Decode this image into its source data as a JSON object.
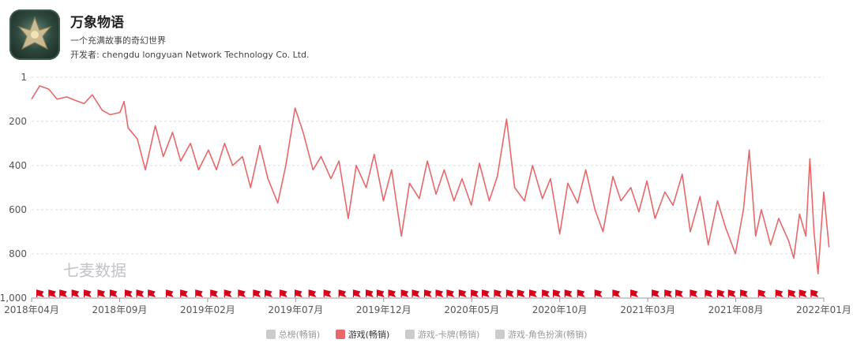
{
  "app": {
    "title": "万象物语",
    "description": "一个充满故事的奇幻世界",
    "developer": "开发者: chengdu longyuan Network Technology Co. Ltd.",
    "icon": "game-emblem-icon"
  },
  "watermark": "七麦数据",
  "colors": {
    "line": "#e8676b",
    "flag": "#d9001b",
    "inactive": "#cccccc",
    "grid": "#dddddd"
  },
  "legend": [
    {
      "label": "总榜(畅销)",
      "active": false
    },
    {
      "label": "游戏(畅销)",
      "active": true
    },
    {
      "label": "游戏-卡牌(畅销)",
      "active": false
    },
    {
      "label": "游戏-角色扮演(畅销)",
      "active": false
    }
  ],
  "chart_data": {
    "type": "line",
    "title": "",
    "xlabel": "",
    "ylabel": "",
    "y_reversed": true,
    "ylim": [
      1,
      1000
    ],
    "y_ticks": [
      "1",
      "200",
      "400",
      "600",
      "800",
      "1,000"
    ],
    "y_tick_values": [
      1,
      200,
      400,
      600,
      800,
      1000
    ],
    "x_ticks": [
      "2018年04月",
      "2018年09月",
      "2019年02月",
      "2019年07月",
      "2019年12月",
      "2020年05月",
      "2020年10月",
      "2021年03月",
      "2021年08月",
      "2022年01月"
    ],
    "x_range": [
      "2018-04-01",
      "2022-01-01"
    ],
    "grid": true,
    "legend_position": "bottom-center",
    "series": [
      {
        "name": "游戏(畅销)",
        "points": [
          [
            "2018-04-01",
            100
          ],
          [
            "2018-04-15",
            40
          ],
          [
            "2018-05-01",
            55
          ],
          [
            "2018-05-15",
            100
          ],
          [
            "2018-06-01",
            90
          ],
          [
            "2018-06-15",
            105
          ],
          [
            "2018-07-01",
            120
          ],
          [
            "2018-07-15",
            80
          ],
          [
            "2018-08-01",
            150
          ],
          [
            "2018-08-15",
            170
          ],
          [
            "2018-09-01",
            160
          ],
          [
            "2018-09-08",
            110
          ],
          [
            "2018-09-15",
            230
          ],
          [
            "2018-10-01",
            280
          ],
          [
            "2018-10-15",
            420
          ],
          [
            "2018-11-01",
            220
          ],
          [
            "2018-11-15",
            360
          ],
          [
            "2018-12-01",
            250
          ],
          [
            "2018-12-15",
            380
          ],
          [
            "2019-01-01",
            300
          ],
          [
            "2019-01-15",
            420
          ],
          [
            "2019-02-01",
            330
          ],
          [
            "2019-02-15",
            420
          ],
          [
            "2019-03-01",
            300
          ],
          [
            "2019-03-15",
            400
          ],
          [
            "2019-04-01",
            360
          ],
          [
            "2019-04-15",
            500
          ],
          [
            "2019-05-01",
            310
          ],
          [
            "2019-05-15",
            460
          ],
          [
            "2019-06-01",
            570
          ],
          [
            "2019-06-15",
            400
          ],
          [
            "2019-07-01",
            140
          ],
          [
            "2019-07-15",
            250
          ],
          [
            "2019-08-01",
            420
          ],
          [
            "2019-08-15",
            360
          ],
          [
            "2019-09-01",
            460
          ],
          [
            "2019-09-15",
            380
          ],
          [
            "2019-10-01",
            640
          ],
          [
            "2019-10-15",
            400
          ],
          [
            "2019-11-01",
            500
          ],
          [
            "2019-11-15",
            350
          ],
          [
            "2019-12-01",
            560
          ],
          [
            "2019-12-15",
            420
          ],
          [
            "2020-01-01",
            720
          ],
          [
            "2020-01-15",
            480
          ],
          [
            "2020-02-01",
            550
          ],
          [
            "2020-02-15",
            380
          ],
          [
            "2020-03-01",
            530
          ],
          [
            "2020-03-15",
            420
          ],
          [
            "2020-04-01",
            560
          ],
          [
            "2020-04-15",
            460
          ],
          [
            "2020-05-01",
            580
          ],
          [
            "2020-05-15",
            390
          ],
          [
            "2020-06-01",
            560
          ],
          [
            "2020-06-15",
            450
          ],
          [
            "2020-07-01",
            190
          ],
          [
            "2020-07-15",
            500
          ],
          [
            "2020-08-01",
            560
          ],
          [
            "2020-08-15",
            400
          ],
          [
            "2020-09-01",
            550
          ],
          [
            "2020-09-15",
            460
          ],
          [
            "2020-10-01",
            710
          ],
          [
            "2020-10-15",
            480
          ],
          [
            "2020-11-01",
            570
          ],
          [
            "2020-11-15",
            420
          ],
          [
            "2020-12-01",
            600
          ],
          [
            "2020-12-15",
            700
          ],
          [
            "2021-01-01",
            450
          ],
          [
            "2021-01-15",
            560
          ],
          [
            "2021-02-01",
            500
          ],
          [
            "2021-02-15",
            610
          ],
          [
            "2021-03-01",
            470
          ],
          [
            "2021-03-15",
            640
          ],
          [
            "2021-04-01",
            520
          ],
          [
            "2021-04-15",
            580
          ],
          [
            "2021-05-01",
            440
          ],
          [
            "2021-05-15",
            700
          ],
          [
            "2021-06-01",
            540
          ],
          [
            "2021-06-15",
            760
          ],
          [
            "2021-07-01",
            560
          ],
          [
            "2021-07-15",
            680
          ],
          [
            "2021-08-01",
            800
          ],
          [
            "2021-08-15",
            600
          ],
          [
            "2021-08-25",
            330
          ],
          [
            "2021-09-05",
            720
          ],
          [
            "2021-09-15",
            600
          ],
          [
            "2021-10-01",
            760
          ],
          [
            "2021-10-15",
            640
          ],
          [
            "2021-11-01",
            740
          ],
          [
            "2021-11-10",
            820
          ],
          [
            "2021-11-20",
            620
          ],
          [
            "2021-12-01",
            720
          ],
          [
            "2021-12-08",
            370
          ],
          [
            "2021-12-15",
            700
          ],
          [
            "2021-12-22",
            890
          ],
          [
            "2022-01-01",
            520
          ],
          [
            "2022-01-10",
            770
          ]
        ]
      }
    ],
    "event_flags": [
      "2018-04-10",
      "2018-05-01",
      "2018-05-20",
      "2018-06-10",
      "2018-07-01",
      "2018-07-25",
      "2018-08-15",
      "2018-09-10",
      "2018-09-30",
      "2018-10-20",
      "2018-11-20",
      "2018-12-15",
      "2019-01-10",
      "2019-02-05",
      "2019-03-01",
      "2019-03-25",
      "2019-04-20",
      "2019-05-10",
      "2019-06-05",
      "2019-07-01",
      "2019-07-25",
      "2019-08-20",
      "2019-09-15",
      "2019-10-10",
      "2019-11-01",
      "2019-11-20",
      "2019-12-10",
      "2020-01-01",
      "2020-01-20",
      "2020-02-10",
      "2020-03-01",
      "2020-03-20",
      "2020-04-10",
      "2020-05-01",
      "2020-05-20",
      "2020-06-10",
      "2020-07-01",
      "2020-07-20",
      "2020-08-10",
      "2020-09-01",
      "2020-09-20",
      "2020-10-10",
      "2020-11-01",
      "2020-12-01",
      "2021-01-01",
      "2021-02-01",
      "2021-03-10",
      "2021-04-01",
      "2021-04-20",
      "2021-05-15",
      "2021-06-10",
      "2021-07-01",
      "2021-07-20",
      "2021-08-10",
      "2021-09-10",
      "2021-10-10",
      "2021-11-01",
      "2021-11-20",
      "2021-12-10"
    ]
  }
}
